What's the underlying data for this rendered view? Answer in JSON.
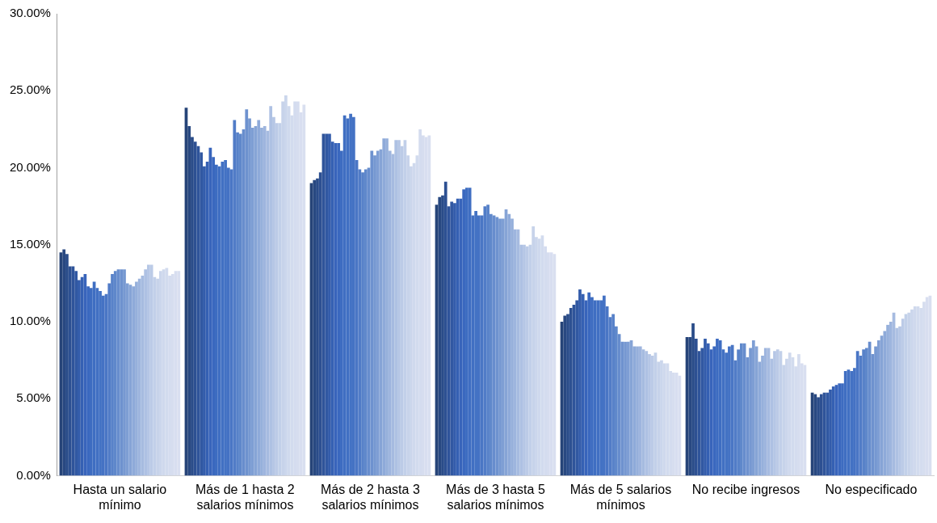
{
  "chart_data": {
    "type": "bar",
    "categories": [
      "Hasta un salario mínimo",
      "Más de 1 hasta 2 salarios mínimos",
      "Más de 2 hasta 3 salarios mínimos",
      "Más de 3 hasta 5 salarios mínimos",
      "Más de 5 salarios mínimos",
      "No recibe ingresos",
      "No especificado"
    ],
    "ylim": [
      0,
      30
    ],
    "yticks": [
      {
        "value": 0,
        "label": "0.00%"
      },
      {
        "value": 5,
        "label": "5.00%"
      },
      {
        "value": 10,
        "label": "10.00%"
      },
      {
        "value": 15,
        "label": "15.00%"
      },
      {
        "value": 20,
        "label": "20.00%"
      },
      {
        "value": 25,
        "label": "25.00%"
      },
      {
        "value": 30,
        "label": "30.00%"
      }
    ],
    "grid": false,
    "legend": false,
    "series": [
      {
        "color": "#264478",
        "values": [
          14.5,
          23.9,
          19.0,
          17.6,
          10.0,
          9.0,
          5.4
        ]
      },
      {
        "color": "#284881",
        "values": [
          14.7,
          22.7,
          19.2,
          18.1,
          10.4,
          9.0,
          5.3
        ]
      },
      {
        "color": "#2a4c89",
        "values": [
          14.4,
          22.0,
          19.3,
          18.2,
          10.5,
          9.9,
          5.1
        ]
      },
      {
        "color": "#2d5092",
        "values": [
          13.6,
          21.7,
          19.7,
          19.1,
          10.9,
          8.9,
          5.3
        ]
      },
      {
        "color": "#2f549a",
        "values": [
          13.6,
          21.4,
          22.2,
          17.5,
          11.1,
          8.1,
          5.4
        ]
      },
      {
        "color": "#3158a2",
        "values": [
          13.3,
          21.0,
          22.2,
          17.8,
          11.4,
          8.3,
          5.4
        ]
      },
      {
        "color": "#335cab",
        "values": [
          12.7,
          20.1,
          22.2,
          17.7,
          12.1,
          8.9,
          5.6
        ]
      },
      {
        "color": "#3560b3",
        "values": [
          12.9,
          20.4,
          21.7,
          18.0,
          11.8,
          8.6,
          5.8
        ]
      },
      {
        "color": "#3864bb",
        "values": [
          13.1,
          21.3,
          21.6,
          18.0,
          11.4,
          8.2,
          5.9
        ]
      },
      {
        "color": "#3a68bf",
        "values": [
          12.3,
          20.7,
          21.6,
          18.6,
          11.9,
          8.4,
          6.0
        ]
      },
      {
        "color": "#3d6cc1",
        "values": [
          12.2,
          20.2,
          21.1,
          18.7,
          11.6,
          8.9,
          6.0
        ]
      },
      {
        "color": "#3f6ec2",
        "values": [
          12.6,
          20.1,
          23.4,
          18.7,
          11.4,
          8.8,
          6.8
        ]
      },
      {
        "color": "#4170c3",
        "values": [
          12.2,
          20.4,
          23.2,
          16.9,
          11.4,
          8.2,
          6.9
        ]
      },
      {
        "color": "#4372c4",
        "values": [
          12.0,
          20.5,
          23.5,
          17.2,
          11.4,
          8.0,
          6.8
        ]
      },
      {
        "color": "#4472c4",
        "values": [
          11.7,
          20.0,
          23.3,
          16.9,
          11.7,
          8.4,
          7.0
        ]
      },
      {
        "color": "#4a76c5",
        "values": [
          11.8,
          19.9,
          20.5,
          16.9,
          11.0,
          8.5,
          8.1
        ]
      },
      {
        "color": "#517cc7",
        "values": [
          12.5,
          23.1,
          19.9,
          17.5,
          10.3,
          7.5,
          7.8
        ]
      },
      {
        "color": "#5882c9",
        "values": [
          13.1,
          22.3,
          19.7,
          17.6,
          10.5,
          8.2,
          8.2
        ]
      },
      {
        "color": "#5f88cb",
        "values": [
          13.3,
          22.2,
          19.9,
          17.0,
          9.7,
          8.6,
          8.3
        ]
      },
      {
        "color": "#678dcd",
        "values": [
          13.4,
          22.5,
          20.0,
          16.9,
          9.2,
          8.6,
          8.7
        ]
      },
      {
        "color": "#6e92cf",
        "values": [
          13.4,
          23.8,
          21.1,
          16.8,
          8.7,
          7.7,
          7.9
        ]
      },
      {
        "color": "#7698d1",
        "values": [
          13.4,
          23.2,
          20.8,
          16.7,
          8.7,
          8.3,
          8.4
        ]
      },
      {
        "color": "#7e9ed4",
        "values": [
          12.5,
          22.6,
          21.1,
          16.7,
          8.7,
          8.8,
          8.8
        ]
      },
      {
        "color": "#86a4d6",
        "values": [
          12.4,
          22.7,
          21.2,
          17.3,
          8.8,
          8.4,
          9.1
        ]
      },
      {
        "color": "#8eaad9",
        "values": [
          12.3,
          23.1,
          21.9,
          17.0,
          8.4,
          7.4,
          9.4
        ]
      },
      {
        "color": "#96b0db",
        "values": [
          12.6,
          22.6,
          21.9,
          16.7,
          8.4,
          7.8,
          9.8
        ]
      },
      {
        "color": "#9eb5de",
        "values": [
          12.8,
          22.7,
          21.1,
          16.0,
          8.4,
          8.3,
          10.0
        ]
      },
      {
        "color": "#a6bbe0",
        "values": [
          13.0,
          22.4,
          20.9,
          16.0,
          8.2,
          8.3,
          10.6
        ]
      },
      {
        "color": "#aec1e3",
        "values": [
          13.4,
          24.0,
          21.8,
          15.0,
          8.1,
          7.6,
          9.6
        ]
      },
      {
        "color": "#b5c6e5",
        "values": [
          13.7,
          23.3,
          21.8,
          15.0,
          7.9,
          8.1,
          9.7
        ]
      },
      {
        "color": "#bccbe7",
        "values": [
          13.7,
          22.9,
          21.4,
          14.9,
          7.8,
          8.2,
          10.2
        ]
      },
      {
        "color": "#c2d0e9",
        "values": [
          12.9,
          22.9,
          21.8,
          15.0,
          8.0,
          8.1,
          10.5
        ]
      },
      {
        "color": "#c7d3ea",
        "values": [
          12.8,
          24.3,
          20.8,
          16.2,
          7.4,
          7.2,
          10.6
        ]
      },
      {
        "color": "#cbd6ec",
        "values": [
          13.3,
          24.7,
          20.1,
          15.5,
          7.5,
          7.6,
          10.8
        ]
      },
      {
        "color": "#cfd9ed",
        "values": [
          13.4,
          24.0,
          20.3,
          15.4,
          7.3,
          8.0,
          11.0
        ]
      },
      {
        "color": "#d2dbee",
        "values": [
          13.5,
          23.4,
          20.8,
          15.6,
          7.3,
          7.7,
          11.0
        ]
      },
      {
        "color": "#d4dcef",
        "values": [
          13.0,
          24.3,
          22.5,
          14.9,
          6.8,
          7.1,
          10.9
        ]
      },
      {
        "color": "#d6ddef",
        "values": [
          13.1,
          24.3,
          22.1,
          14.5,
          6.7,
          7.9,
          11.3
        ]
      },
      {
        "color": "#d8def0",
        "values": [
          13.3,
          23.6,
          22.0,
          14.5,
          6.7,
          7.3,
          11.6
        ]
      },
      {
        "color": "#d9dff0",
        "values": [
          13.3,
          24.1,
          22.1,
          14.4,
          6.5,
          7.2,
          11.7
        ]
      }
    ]
  }
}
